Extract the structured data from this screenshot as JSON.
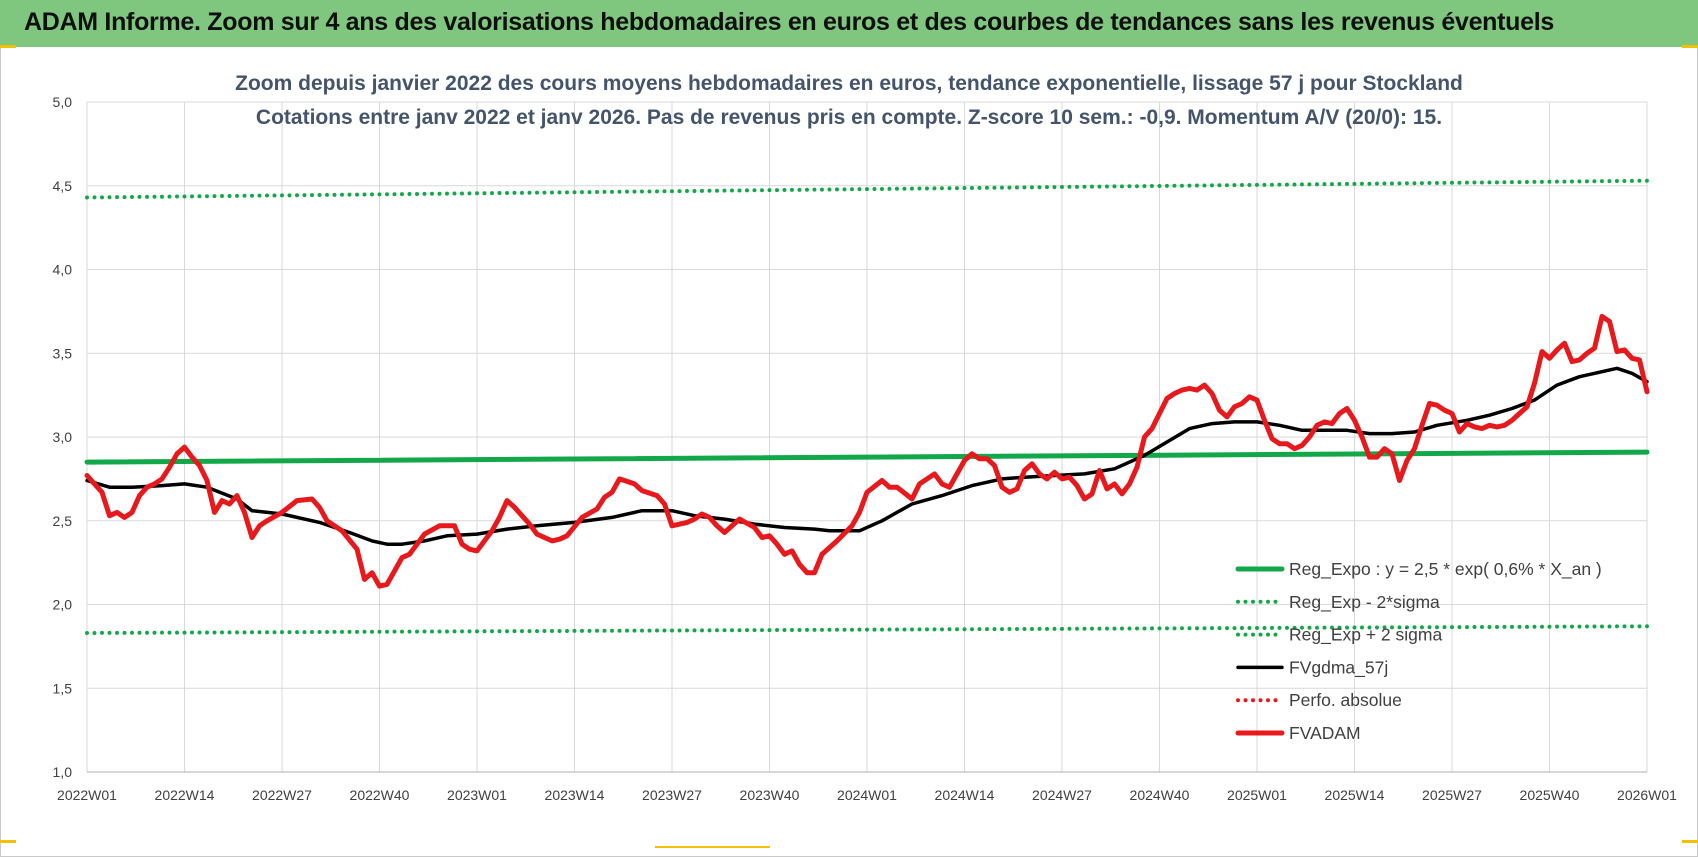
{
  "header": {
    "title": "ADAM Informe. Zoom sur 4 ans des valorisations hebdomadaires en euros et des courbes de tendances sans les revenus éventuels"
  },
  "colors": {
    "banner": "#7fc77e",
    "reg_expo": "#12a84a",
    "bands": "#12a84a",
    "fvgdma": "#000000",
    "perfo": "#e8191c",
    "fvadam": "#e8191c",
    "grid": "#d9d9d9"
  },
  "chart_data": {
    "type": "line",
    "title": "Zoom depuis janvier 2022 des cours moyens hebdomadaires en euros, tendance exponentielle, lissage 57 j pour Stockland",
    "subtitle": "Cotations entre janv 2022 et janv 2026. Pas de revenus pris en compte. Z-score 10 sem.: -0,9. Momentum A/V (20/0): 15.",
    "xlabel": "",
    "ylabel": "",
    "x_tick_labels": [
      "2022W01",
      "2022W14",
      "2022W27",
      "2022W40",
      "2023W01",
      "2023W14",
      "2023W27",
      "2023W40",
      "2024W01",
      "2024W14",
      "2024W27",
      "2024W40",
      "2025W01",
      "2025W14",
      "2025W27",
      "2025W40",
      "2026W01"
    ],
    "y_tick_labels": [
      "1,0",
      "1,5",
      "2,0",
      "2,5",
      "3,0",
      "3,5",
      "4,0",
      "4,5",
      "5,0"
    ],
    "ylim": [
      1.0,
      5.0
    ],
    "x_range_weeks": [
      0,
      208
    ],
    "grid": true,
    "legend_placement": "bottom-right",
    "series": [
      {
        "name": "Reg_Expo : y = 2,5 * exp( 0,6% *  X_an )",
        "style": "solid-thick",
        "color": "#12a84a",
        "points": [
          [
            0,
            2.85
          ],
          [
            208,
            2.91
          ]
        ]
      },
      {
        "name": "Reg_Exp - 2*sigma",
        "style": "dotted",
        "color": "#12a84a",
        "points": [
          [
            0,
            1.83
          ],
          [
            208,
            1.87
          ]
        ]
      },
      {
        "name": "Reg_Exp + 2 sigma",
        "style": "dotted",
        "color": "#12a84a",
        "points": [
          [
            0,
            4.43
          ],
          [
            208,
            4.53
          ]
        ]
      },
      {
        "name": "FVgdma_57j",
        "style": "solid",
        "color": "#000000",
        "points": [
          [
            0,
            2.74
          ],
          [
            3,
            2.7
          ],
          [
            6,
            2.7
          ],
          [
            10,
            2.71
          ],
          [
            13,
            2.72
          ],
          [
            16,
            2.7
          ],
          [
            20,
            2.63
          ],
          [
            22,
            2.56
          ],
          [
            26,
            2.54
          ],
          [
            31,
            2.49
          ],
          [
            35,
            2.43
          ],
          [
            38,
            2.38
          ],
          [
            40,
            2.36
          ],
          [
            42,
            2.36
          ],
          [
            45,
            2.38
          ],
          [
            48,
            2.41
          ],
          [
            52,
            2.42
          ],
          [
            56,
            2.45
          ],
          [
            60,
            2.47
          ],
          [
            65,
            2.49
          ],
          [
            70,
            2.52
          ],
          [
            74,
            2.56
          ],
          [
            78,
            2.56
          ],
          [
            81,
            2.53
          ],
          [
            85,
            2.51
          ],
          [
            89,
            2.48
          ],
          [
            93,
            2.46
          ],
          [
            97,
            2.45
          ],
          [
            99,
            2.44
          ],
          [
            103,
            2.44
          ],
          [
            106,
            2.5
          ],
          [
            110,
            2.6
          ],
          [
            114,
            2.65
          ],
          [
            118,
            2.71
          ],
          [
            122,
            2.75
          ],
          [
            125,
            2.76
          ],
          [
            129,
            2.77
          ],
          [
            133,
            2.78
          ],
          [
            137,
            2.81
          ],
          [
            141,
            2.89
          ],
          [
            144,
            2.97
          ],
          [
            147,
            3.05
          ],
          [
            150,
            3.08
          ],
          [
            153,
            3.09
          ],
          [
            156,
            3.09
          ],
          [
            159,
            3.07
          ],
          [
            162,
            3.04
          ],
          [
            165,
            3.04
          ],
          [
            168,
            3.04
          ],
          [
            171,
            3.02
          ],
          [
            174,
            3.02
          ],
          [
            177,
            3.03
          ],
          [
            180,
            3.07
          ],
          [
            184,
            3.1
          ],
          [
            187,
            3.13
          ],
          [
            190,
            3.17
          ],
          [
            193,
            3.22
          ],
          [
            196,
            3.31
          ],
          [
            199,
            3.36
          ],
          [
            202,
            3.39
          ],
          [
            204,
            3.41
          ],
          [
            206,
            3.38
          ],
          [
            208,
            3.33
          ]
        ]
      },
      {
        "name": "Perfo. absolue",
        "style": "dotted",
        "color": "#e8191c",
        "points": []
      },
      {
        "name": "FVADAM",
        "style": "solid-thick",
        "color": "#e8191c",
        "points": [
          [
            0,
            2.77
          ],
          [
            2,
            2.67
          ],
          [
            3,
            2.53
          ],
          [
            4,
            2.55
          ],
          [
            5,
            2.52
          ],
          [
            6,
            2.55
          ],
          [
            7,
            2.65
          ],
          [
            8,
            2.7
          ],
          [
            9,
            2.72
          ],
          [
            10,
            2.75
          ],
          [
            11,
            2.82
          ],
          [
            12,
            2.9
          ],
          [
            13,
            2.94
          ],
          [
            14,
            2.88
          ],
          [
            15,
            2.83
          ],
          [
            16,
            2.74
          ],
          [
            17,
            2.55
          ],
          [
            18,
            2.62
          ],
          [
            19,
            2.6
          ],
          [
            20,
            2.65
          ],
          [
            21,
            2.55
          ],
          [
            22,
            2.4
          ],
          [
            23,
            2.47
          ],
          [
            24,
            2.5
          ],
          [
            26,
            2.55
          ],
          [
            28,
            2.62
          ],
          [
            30,
            2.63
          ],
          [
            31,
            2.58
          ],
          [
            32,
            2.5
          ],
          [
            34,
            2.44
          ],
          [
            36,
            2.33
          ],
          [
            37,
            2.15
          ],
          [
            38,
            2.19
          ],
          [
            39,
            2.11
          ],
          [
            40,
            2.12
          ],
          [
            42,
            2.28
          ],
          [
            43,
            2.3
          ],
          [
            45,
            2.42
          ],
          [
            47,
            2.47
          ],
          [
            49,
            2.47
          ],
          [
            50,
            2.36
          ],
          [
            51,
            2.33
          ],
          [
            52,
            2.32
          ],
          [
            54,
            2.44
          ],
          [
            55,
            2.52
          ],
          [
            56,
            2.62
          ],
          [
            57,
            2.58
          ],
          [
            59,
            2.48
          ],
          [
            60,
            2.42
          ],
          [
            62,
            2.38
          ],
          [
            63,
            2.39
          ],
          [
            64,
            2.41
          ],
          [
            66,
            2.52
          ],
          [
            68,
            2.57
          ],
          [
            69,
            2.64
          ],
          [
            70,
            2.67
          ],
          [
            71,
            2.75
          ],
          [
            73,
            2.72
          ],
          [
            74,
            2.68
          ],
          [
            76,
            2.65
          ],
          [
            77,
            2.6
          ],
          [
            78,
            2.47
          ],
          [
            80,
            2.49
          ],
          [
            81,
            2.51
          ],
          [
            82,
            2.54
          ],
          [
            83,
            2.52
          ],
          [
            84,
            2.47
          ],
          [
            85,
            2.43
          ],
          [
            87,
            2.51
          ],
          [
            89,
            2.46
          ],
          [
            90,
            2.4
          ],
          [
            91,
            2.41
          ],
          [
            92,
            2.36
          ],
          [
            93,
            2.3
          ],
          [
            94,
            2.32
          ],
          [
            95,
            2.24
          ],
          [
            96,
            2.19
          ],
          [
            97,
            2.19
          ],
          [
            98,
            2.3
          ],
          [
            100,
            2.38
          ],
          [
            102,
            2.47
          ],
          [
            103,
            2.55
          ],
          [
            104,
            2.67
          ],
          [
            106,
            2.74
          ],
          [
            107,
            2.7
          ],
          [
            108,
            2.7
          ],
          [
            110,
            2.63
          ],
          [
            111,
            2.72
          ],
          [
            112,
            2.75
          ],
          [
            113,
            2.78
          ],
          [
            114,
            2.72
          ],
          [
            115,
            2.7
          ],
          [
            116,
            2.78
          ],
          [
            117,
            2.86
          ],
          [
            118,
            2.9
          ],
          [
            119,
            2.87
          ],
          [
            120,
            2.87
          ],
          [
            121,
            2.83
          ],
          [
            122,
            2.7
          ],
          [
            123,
            2.67
          ],
          [
            124,
            2.69
          ],
          [
            125,
            2.8
          ],
          [
            126,
            2.84
          ],
          [
            127,
            2.78
          ],
          [
            128,
            2.75
          ],
          [
            129,
            2.79
          ],
          [
            130,
            2.75
          ],
          [
            131,
            2.76
          ],
          [
            132,
            2.71
          ],
          [
            133,
            2.63
          ],
          [
            134,
            2.66
          ],
          [
            135,
            2.8
          ],
          [
            136,
            2.69
          ],
          [
            137,
            2.72
          ],
          [
            138,
            2.66
          ],
          [
            139,
            2.72
          ],
          [
            140,
            2.82
          ],
          [
            141,
            3.0
          ],
          [
            142,
            3.05
          ],
          [
            143,
            3.14
          ],
          [
            144,
            3.23
          ],
          [
            145,
            3.26
          ],
          [
            146,
            3.28
          ],
          [
            147,
            3.29
          ],
          [
            148,
            3.28
          ],
          [
            149,
            3.31
          ],
          [
            150,
            3.26
          ],
          [
            151,
            3.16
          ],
          [
            152,
            3.12
          ],
          [
            153,
            3.18
          ],
          [
            154,
            3.2
          ],
          [
            155,
            3.24
          ],
          [
            156,
            3.22
          ],
          [
            157,
            3.1
          ],
          [
            158,
            2.99
          ],
          [
            159,
            2.96
          ],
          [
            160,
            2.96
          ],
          [
            161,
            2.93
          ],
          [
            162,
            2.95
          ],
          [
            163,
            3.0
          ],
          [
            164,
            3.07
          ],
          [
            165,
            3.09
          ],
          [
            166,
            3.08
          ],
          [
            167,
            3.14
          ],
          [
            168,
            3.17
          ],
          [
            169,
            3.1
          ],
          [
            170,
            3.0
          ],
          [
            171,
            2.88
          ],
          [
            172,
            2.88
          ],
          [
            173,
            2.93
          ],
          [
            174,
            2.9
          ],
          [
            175,
            2.74
          ],
          [
            176,
            2.86
          ],
          [
            177,
            2.93
          ],
          [
            178,
            3.07
          ],
          [
            179,
            3.2
          ],
          [
            180,
            3.19
          ],
          [
            181,
            3.16
          ],
          [
            182,
            3.14
          ],
          [
            183,
            3.03
          ],
          [
            184,
            3.08
          ],
          [
            185,
            3.06
          ],
          [
            186,
            3.05
          ],
          [
            187,
            3.07
          ],
          [
            188,
            3.06
          ],
          [
            189,
            3.07
          ],
          [
            190,
            3.1
          ],
          [
            191,
            3.14
          ],
          [
            192,
            3.18
          ],
          [
            193,
            3.32
          ],
          [
            194,
            3.51
          ],
          [
            195,
            3.47
          ],
          [
            196,
            3.52
          ],
          [
            197,
            3.56
          ],
          [
            198,
            3.45
          ],
          [
            199,
            3.46
          ],
          [
            200,
            3.5
          ],
          [
            201,
            3.53
          ],
          [
            202,
            3.72
          ],
          [
            203,
            3.69
          ],
          [
            204,
            3.51
          ],
          [
            205,
            3.52
          ],
          [
            206,
            3.47
          ],
          [
            207,
            3.46
          ],
          [
            208,
            3.27
          ]
        ]
      }
    ]
  }
}
